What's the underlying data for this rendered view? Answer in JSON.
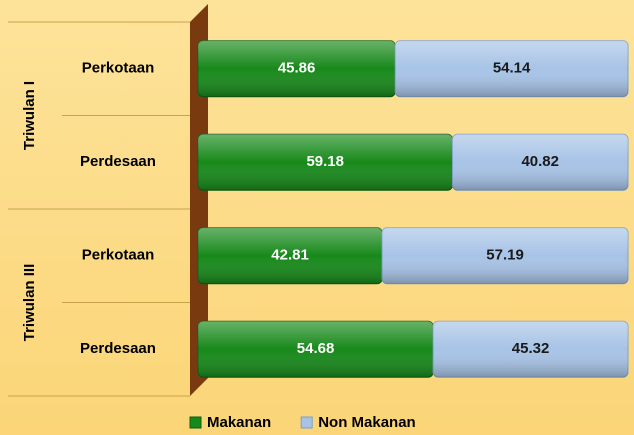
{
  "chart_data": {
    "type": "bar",
    "orientation": "horizontal",
    "stacked": true,
    "groups": [
      "Triwulan I",
      "Triwulan III"
    ],
    "categories": [
      "Perkotaan",
      "Perdesaan",
      "Perkotaan",
      "Perdesaan"
    ],
    "series": [
      {
        "name": "Makanan",
        "color": "#17891a",
        "values": [
          45.86,
          59.18,
          42.81,
          54.68
        ]
      },
      {
        "name": "Non Makanan",
        "color": "#a7c3e6",
        "values": [
          54.14,
          40.82,
          57.19,
          45.32
        ]
      }
    ],
    "xlim": [
      0,
      100
    ],
    "legend": "bottom"
  }
}
